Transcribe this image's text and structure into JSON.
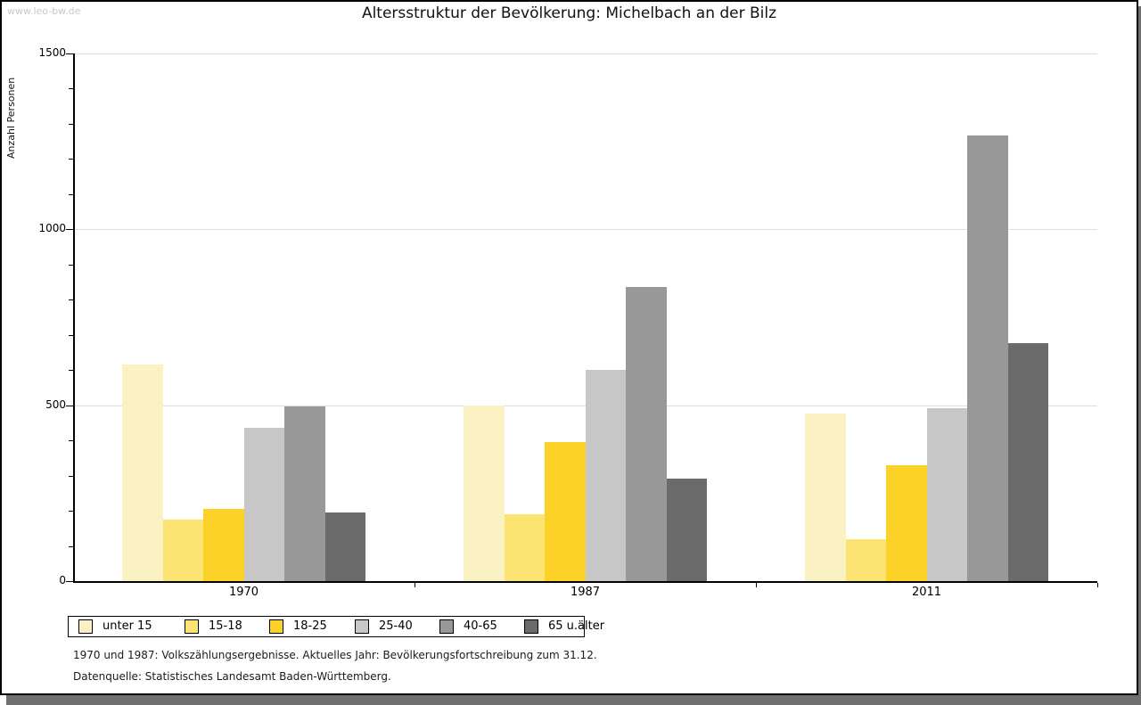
{
  "watermark": "www.leo-bw.de",
  "title": "Altersstruktur der Bevölkerung: Michelbach an der Bilz",
  "footnotes": {
    "line1": "1970 und 1987: Volkszählungsergebnisse. Aktuelles Jahr: Bevölkerungsfortschreibung zum 31.12.",
    "line2": "Datenquelle: Statistisches Landesamt Baden-Württemberg."
  },
  "chart_data": {
    "type": "bar",
    "title": "Altersstruktur der Bevölkerung: Michelbach an der Bilz",
    "ylabel": "Anzahl Personen",
    "categories": [
      "1970",
      "1987",
      "2011"
    ],
    "series": [
      {
        "name": "unter 15",
        "color": "#FBF2C4",
        "values": [
          615,
          500,
          475
        ]
      },
      {
        "name": "15-18",
        "color": "#FBE472",
        "values": [
          175,
          190,
          120
        ]
      },
      {
        "name": "18-25",
        "color": "#FCD228",
        "values": [
          205,
          395,
          330
        ]
      },
      {
        "name": "25-40",
        "color": "#C7C7C7",
        "values": [
          435,
          600,
          490
        ]
      },
      {
        "name": "40-65",
        "color": "#989898",
        "values": [
          495,
          835,
          1265
        ]
      },
      {
        "name": "65 u.älter",
        "color": "#6B6B6B",
        "values": [
          195,
          290,
          675
        ]
      }
    ],
    "ylim": [
      0,
      1500
    ],
    "yticks": [
      0,
      500,
      1000,
      1500
    ],
    "minor_tick_step": 100,
    "grid": true,
    "legend_position": "bottom",
    "axis_color": "#000000",
    "grid_color": "#DEDEDE",
    "shadow_color": "#6F6F6F",
    "watermark_color": "#C9C9C9"
  }
}
